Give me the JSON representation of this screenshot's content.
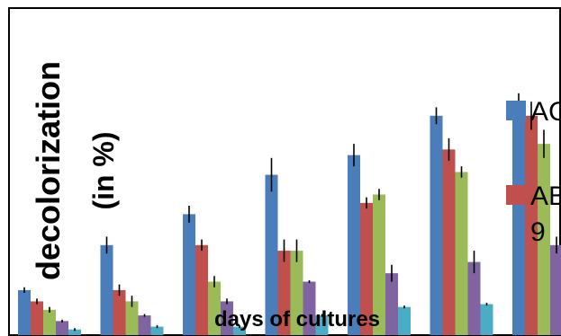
{
  "chart_data": {
    "type": "bar",
    "categories": [
      "",
      "",
      "",
      "",
      "",
      "",
      ""
    ],
    "ylabel": "decolorization (in %)",
    "xlabel": "days of cultures",
    "ylim": [
      0,
      100
    ],
    "grid": false,
    "legend_position": "right (cropped)",
    "series": [
      {
        "name": "AC",
        "color": "#4A7EBB",
        "values": [
          16,
          32,
          43,
          57,
          64,
          78,
          82
        ],
        "errors": [
          1,
          3,
          3,
          6,
          4,
          3,
          4
        ]
      },
      {
        "name": "AB 9",
        "color": "#C0504D",
        "values": [
          12,
          16,
          32,
          30,
          47,
          66,
          78
        ],
        "errors": [
          1,
          2,
          2,
          4,
          2,
          4,
          5
        ]
      },
      {
        "name": "",
        "color": "#9BBB59",
        "values": [
          9,
          12,
          19,
          30,
          50,
          58,
          68
        ],
        "errors": [
          1,
          2,
          2,
          4,
          2,
          2,
          5
        ]
      },
      {
        "name": "",
        "color": "#8064A2",
        "values": [
          5,
          7,
          12,
          19,
          22,
          26,
          32
        ],
        "errors": [
          0.5,
          0.5,
          1,
          0.5,
          3,
          4,
          3
        ]
      },
      {
        "name": "",
        "color": "#4BACC6",
        "values": [
          2,
          3,
          3,
          7,
          10,
          11,
          13
        ],
        "errors": [
          0.5,
          0.5,
          0.5,
          0.5,
          0.5,
          0.5,
          1
        ]
      }
    ]
  }
}
